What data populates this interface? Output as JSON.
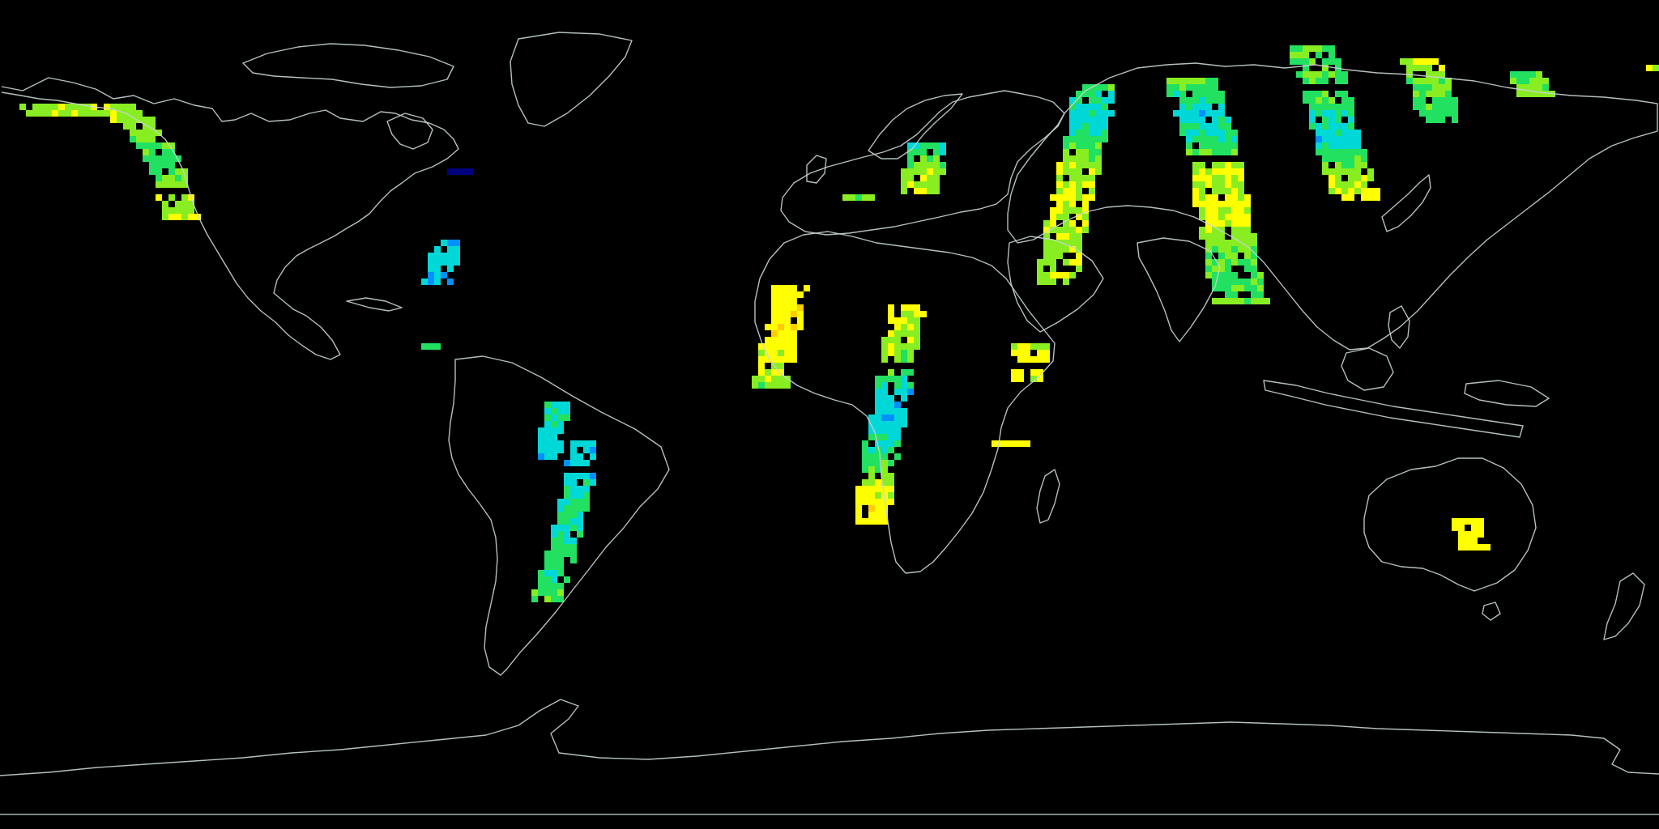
{
  "map": {
    "projection": "equirectangular",
    "background_color": "#000000",
    "coastline_color": "#c8d4d4",
    "lon_range": [
      -180,
      180
    ],
    "lat_range": [
      -90,
      90
    ],
    "colormap": {
      "name": "jet-like",
      "low_to_high": [
        "#00007f",
        "#0000ff",
        "#0090ff",
        "#00d8d8",
        "#22e060",
        "#88ee22",
        "#ffff00",
        "#ffcc00",
        "#ff7700",
        "#ff0000"
      ]
    },
    "value_range": [
      0,
      1
    ],
    "swaths": [
      {
        "id": "alaska",
        "points": [
          [
            -168,
            67,
            0.6
          ],
          [
            -165,
            66.5,
            0.55
          ],
          [
            -162,
            65.5,
            0.62
          ]
        ],
        "width": 12
      },
      {
        "id": "yukon-bc",
        "points": [
          [
            -155,
            67,
            0.6
          ],
          [
            -150,
            62,
            0.55
          ],
          [
            -146,
            56,
            0.45
          ],
          [
            -144,
            50,
            0.55
          ],
          [
            -142,
            44,
            0.62
          ]
        ],
        "width": 5
      },
      {
        "id": "great-lakes",
        "points": [
          [
            -81,
            54,
            0.02
          ]
        ],
        "width": 4
      },
      {
        "id": "us-east",
        "points": [
          [
            -83.5,
            38,
            0.32
          ],
          [
            -84.5,
            34,
            0.32
          ],
          [
            -85.5,
            30,
            0.32
          ]
        ],
        "width": 4
      },
      {
        "id": "mexico",
        "points": [
          [
            -88,
            15.5,
            0.45
          ]
        ],
        "width": 3
      },
      {
        "id": "colombia-peru",
        "points": [
          [
            -60,
            3,
            0.4
          ],
          [
            -61.5,
            -3,
            0.35
          ],
          [
            -62.5,
            -9,
            0.32
          ]
        ],
        "width": 3
      },
      {
        "id": "south-america",
        "points": [
          [
            -54,
            -6,
            0.3
          ],
          [
            -55,
            -12,
            0.32
          ],
          [
            -56,
            -18,
            0.42
          ],
          [
            -57.5,
            -24,
            0.38
          ],
          [
            -59,
            -30,
            0.45
          ],
          [
            -61,
            -37,
            0.42
          ],
          [
            -62,
            -40,
            0.5
          ]
        ],
        "width": 4
      },
      {
        "id": "west-africa",
        "points": [
          [
            -10,
            28,
            0.67
          ],
          [
            -11.5,
            20,
            0.68
          ],
          [
            -13,
            12,
            0.65
          ],
          [
            -14,
            7,
            0.55
          ]
        ],
        "width": 5
      },
      {
        "id": "central-africa",
        "points": [
          [
            15.5,
            24,
            0.66
          ],
          [
            14,
            15,
            0.6
          ],
          [
            12.5,
            6,
            0.32
          ],
          [
            11,
            -2,
            0.3
          ],
          [
            9.5,
            -10,
            0.5
          ],
          [
            8.5,
            -17,
            0.66
          ],
          [
            8,
            -22,
            0.68
          ]
        ],
        "width": 5
      },
      {
        "id": "arabia",
        "points": [
          [
            41.5,
            9,
            0.66
          ],
          [
            42.5,
            15,
            0.64
          ]
        ],
        "width": 5
      },
      {
        "id": "horn-of-africa",
        "points": [
          [
            38,
            -5.5,
            0.66
          ]
        ],
        "width": 5
      },
      {
        "id": "scandinavia",
        "points": [
          [
            21,
            59,
            0.4
          ],
          [
            20,
            54,
            0.55
          ],
          [
            19,
            49,
            0.6
          ]
        ],
        "width": 6
      },
      {
        "id": "russia-west",
        "points": [
          [
            6,
            48.5,
            0.55
          ]
        ],
        "width": 4
      },
      {
        "id": "urals-central-asia",
        "points": [
          [
            57,
            72,
            0.45
          ],
          [
            55.5,
            64,
            0.32
          ],
          [
            54,
            56,
            0.55
          ],
          [
            52,
            48,
            0.62
          ],
          [
            50,
            38,
            0.58
          ],
          [
            48.5,
            30,
            0.6
          ]
        ],
        "width": 6
      },
      {
        "id": "siberia-south-asia",
        "points": [
          [
            78,
            73,
            0.5
          ],
          [
            80,
            66,
            0.32
          ],
          [
            82,
            60,
            0.4
          ],
          [
            83.5,
            54,
            0.62
          ],
          [
            84.5,
            46,
            0.62
          ],
          [
            86,
            38,
            0.55
          ],
          [
            87.5,
            30,
            0.45
          ],
          [
            88.5,
            25,
            0.5
          ]
        ],
        "width": 8
      },
      {
        "id": "east-siberia-china",
        "points": [
          [
            103,
            80,
            0.5
          ],
          [
            105.5,
            74,
            0.48
          ],
          [
            107.5,
            68,
            0.45
          ],
          [
            109,
            61,
            0.3
          ],
          [
            111,
            54,
            0.55
          ],
          [
            113,
            48,
            0.65
          ]
        ],
        "width": 7
      },
      {
        "id": "far-east",
        "points": [
          [
            128,
            78,
            0.62
          ],
          [
            130,
            72,
            0.5
          ],
          [
            131.5,
            65,
            0.45
          ]
        ],
        "width": 6
      },
      {
        "id": "chukotka",
        "points": [
          [
            150,
            74,
            0.5
          ],
          [
            152,
            71,
            0.55
          ]
        ],
        "width": 5
      },
      {
        "id": "australia",
        "points": [
          [
            137.5,
            -22,
            0.66
          ],
          [
            139,
            -28,
            0.68
          ]
        ],
        "width": 4
      },
      {
        "id": "dateline-east",
        "points": [
          [
            178,
            76,
            0.66
          ]
        ],
        "width": 2
      }
    ]
  }
}
